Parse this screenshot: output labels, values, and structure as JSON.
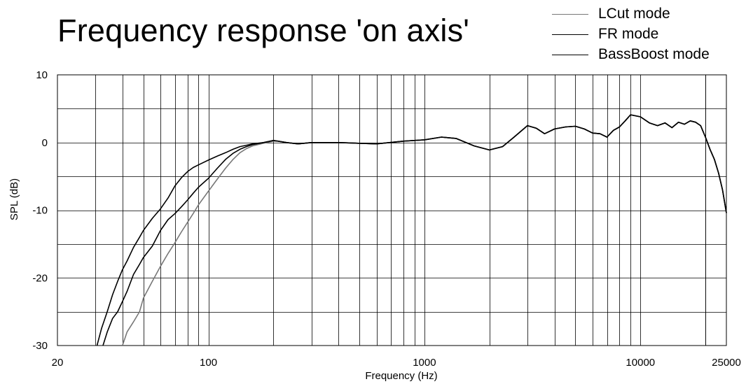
{
  "chart_data": {
    "type": "line",
    "title": "Frequency response 'on axis'",
    "xlabel": "Frequency (Hz)",
    "ylabel": "SPL (dB)",
    "xscale": "log",
    "xlim": [
      20,
      25000
    ],
    "ylim": [
      -30,
      10
    ],
    "x_tick_labels": [
      "20",
      "100",
      "1000",
      "10000",
      "25000"
    ],
    "x_ticks": [
      20,
      100,
      1000,
      10000,
      25000
    ],
    "y_ticks": [
      10,
      0,
      -10,
      -20,
      -30
    ],
    "y_tick_labels": [
      "10",
      "0",
      "-10",
      "-20",
      "-30"
    ],
    "grid": true,
    "legend_position": "top-right",
    "series": [
      {
        "name": "LCut mode",
        "color": "#777777",
        "points": [
          [
            40,
            -30
          ],
          [
            42,
            -28
          ],
          [
            45,
            -26.5
          ],
          [
            48,
            -25
          ],
          [
            50,
            -23
          ],
          [
            55,
            -20.5
          ],
          [
            60,
            -18.3
          ],
          [
            65,
            -16.4
          ],
          [
            70,
            -14.8
          ],
          [
            75,
            -13.2
          ],
          [
            80,
            -11.8
          ],
          [
            85,
            -10.5
          ],
          [
            90,
            -9.2
          ],
          [
            100,
            -7.2
          ],
          [
            110,
            -5.4
          ],
          [
            120,
            -3.8
          ],
          [
            130,
            -2.5
          ],
          [
            140,
            -1.5
          ],
          [
            150,
            -0.9
          ],
          [
            160,
            -0.5
          ],
          [
            180,
            -0.1
          ],
          [
            200,
            0.2
          ],
          [
            210,
            0.2
          ],
          [
            230,
            0
          ],
          [
            260,
            -0.2
          ],
          [
            300,
            0
          ],
          [
            400,
            0
          ],
          [
            600,
            -0.2
          ],
          [
            800,
            0.2
          ],
          [
            1000,
            0.4
          ],
          [
            1200,
            0.8
          ],
          [
            1400,
            0.6
          ],
          [
            1700,
            -0.5
          ],
          [
            2000,
            -1.1
          ],
          [
            2300,
            -0.6
          ],
          [
            2600,
            0.8
          ],
          [
            3000,
            2.5
          ],
          [
            3300,
            2.1
          ],
          [
            3600,
            1.3
          ],
          [
            4000,
            2.0
          ],
          [
            4500,
            2.3
          ],
          [
            5000,
            2.4
          ],
          [
            5500,
            2.0
          ],
          [
            6000,
            1.4
          ],
          [
            6500,
            1.3
          ],
          [
            7000,
            0.8
          ],
          [
            7500,
            1.8
          ],
          [
            8000,
            2.3
          ],
          [
            8500,
            3.2
          ],
          [
            9000,
            4.1
          ],
          [
            10000,
            3.8
          ],
          [
            11000,
            2.9
          ],
          [
            12000,
            2.5
          ],
          [
            13000,
            2.9
          ],
          [
            14000,
            2.2
          ],
          [
            15000,
            3.0
          ],
          [
            16000,
            2.7
          ],
          [
            17000,
            3.2
          ],
          [
            18000,
            3.0
          ],
          [
            19000,
            2.5
          ],
          [
            20000,
            0.8
          ],
          [
            21000,
            -1.0
          ],
          [
            22000,
            -2.5
          ],
          [
            23000,
            -4.5
          ],
          [
            24000,
            -7
          ],
          [
            25000,
            -10.4
          ]
        ]
      },
      {
        "name": "FR mode",
        "color": "#000000",
        "points": [
          [
            32.5,
            -30
          ],
          [
            34,
            -28
          ],
          [
            36,
            -26
          ],
          [
            38,
            -25
          ],
          [
            40,
            -23.5
          ],
          [
            42,
            -22
          ],
          [
            45,
            -19.5
          ],
          [
            48,
            -18
          ],
          [
            50,
            -17
          ],
          [
            55,
            -15.3
          ],
          [
            60,
            -13
          ],
          [
            65,
            -11.4
          ],
          [
            70,
            -10.5
          ],
          [
            75,
            -9.5
          ],
          [
            80,
            -8.5
          ],
          [
            85,
            -7.5
          ],
          [
            90,
            -6.6
          ],
          [
            100,
            -5.3
          ],
          [
            110,
            -3.8
          ],
          [
            120,
            -2.5
          ],
          [
            130,
            -1.6
          ],
          [
            140,
            -1.0
          ],
          [
            150,
            -0.6
          ],
          [
            160,
            -0.3
          ],
          [
            180,
            0
          ],
          [
            200,
            0.3
          ],
          [
            210,
            0.2
          ],
          [
            230,
            0
          ],
          [
            260,
            -0.2
          ],
          [
            300,
            0
          ],
          [
            400,
            0
          ],
          [
            600,
            -0.2
          ],
          [
            800,
            0.2
          ],
          [
            1000,
            0.4
          ],
          [
            1200,
            0.8
          ],
          [
            1400,
            0.6
          ],
          [
            1700,
            -0.5
          ],
          [
            2000,
            -1.1
          ],
          [
            2300,
            -0.6
          ],
          [
            2600,
            0.8
          ],
          [
            3000,
            2.5
          ],
          [
            3300,
            2.1
          ],
          [
            3600,
            1.3
          ],
          [
            4000,
            2.0
          ],
          [
            4500,
            2.3
          ],
          [
            5000,
            2.4
          ],
          [
            5500,
            2.0
          ],
          [
            6000,
            1.4
          ],
          [
            6500,
            1.3
          ],
          [
            7000,
            0.8
          ],
          [
            7500,
            1.8
          ],
          [
            8000,
            2.3
          ],
          [
            8500,
            3.2
          ],
          [
            9000,
            4.1
          ],
          [
            10000,
            3.8
          ],
          [
            11000,
            2.9
          ],
          [
            12000,
            2.5
          ],
          [
            13000,
            2.9
          ],
          [
            14000,
            2.2
          ],
          [
            15000,
            3.0
          ],
          [
            16000,
            2.7
          ],
          [
            17000,
            3.2
          ],
          [
            18000,
            3.0
          ],
          [
            19000,
            2.5
          ],
          [
            20000,
            0.8
          ],
          [
            21000,
            -1.0
          ],
          [
            22000,
            -2.5
          ],
          [
            23000,
            -4.5
          ],
          [
            24000,
            -7
          ],
          [
            25000,
            -10.4
          ]
        ]
      },
      {
        "name": "BassBoost mode",
        "color": "#000000",
        "points": [
          [
            30.5,
            -30
          ],
          [
            32,
            -27.5
          ],
          [
            34,
            -25
          ],
          [
            36,
            -22.5
          ],
          [
            38,
            -20.5
          ],
          [
            40,
            -18.8
          ],
          [
            42,
            -17.5
          ],
          [
            45,
            -15.5
          ],
          [
            48,
            -14
          ],
          [
            50,
            -13
          ],
          [
            55,
            -11.2
          ],
          [
            60,
            -9.8
          ],
          [
            65,
            -8.2
          ],
          [
            70,
            -6.4
          ],
          [
            75,
            -5.2
          ],
          [
            80,
            -4.3
          ],
          [
            85,
            -3.7
          ],
          [
            90,
            -3.3
          ],
          [
            100,
            -2.6
          ],
          [
            110,
            -2.0
          ],
          [
            120,
            -1.5
          ],
          [
            130,
            -1.0
          ],
          [
            140,
            -0.6
          ],
          [
            150,
            -0.4
          ],
          [
            160,
            -0.2
          ],
          [
            180,
            0
          ],
          [
            200,
            0.3
          ],
          [
            210,
            0.2
          ],
          [
            230,
            0
          ],
          [
            260,
            -0.2
          ],
          [
            300,
            0
          ],
          [
            400,
            0
          ],
          [
            600,
            -0.2
          ],
          [
            800,
            0.2
          ],
          [
            1000,
            0.4
          ],
          [
            1200,
            0.8
          ],
          [
            1400,
            0.6
          ],
          [
            1700,
            -0.5
          ],
          [
            2000,
            -1.1
          ],
          [
            2300,
            -0.6
          ],
          [
            2600,
            0.8
          ],
          [
            3000,
            2.5
          ],
          [
            3300,
            2.1
          ],
          [
            3600,
            1.3
          ],
          [
            4000,
            2.0
          ],
          [
            4500,
            2.3
          ],
          [
            5000,
            2.4
          ],
          [
            5500,
            2.0
          ],
          [
            6000,
            1.4
          ],
          [
            6500,
            1.3
          ],
          [
            7000,
            0.8
          ],
          [
            7500,
            1.8
          ],
          [
            8000,
            2.3
          ],
          [
            8500,
            3.2
          ],
          [
            9000,
            4.1
          ],
          [
            10000,
            3.8
          ],
          [
            11000,
            2.9
          ],
          [
            12000,
            2.5
          ],
          [
            13000,
            2.9
          ],
          [
            14000,
            2.2
          ],
          [
            15000,
            3.0
          ],
          [
            16000,
            2.7
          ],
          [
            17000,
            3.2
          ],
          [
            18000,
            3.0
          ],
          [
            19000,
            2.5
          ],
          [
            20000,
            0.8
          ],
          [
            21000,
            -1.0
          ],
          [
            22000,
            -2.5
          ],
          [
            23000,
            -4.5
          ],
          [
            24000,
            -7
          ],
          [
            25000,
            -10.4
          ]
        ]
      }
    ]
  }
}
